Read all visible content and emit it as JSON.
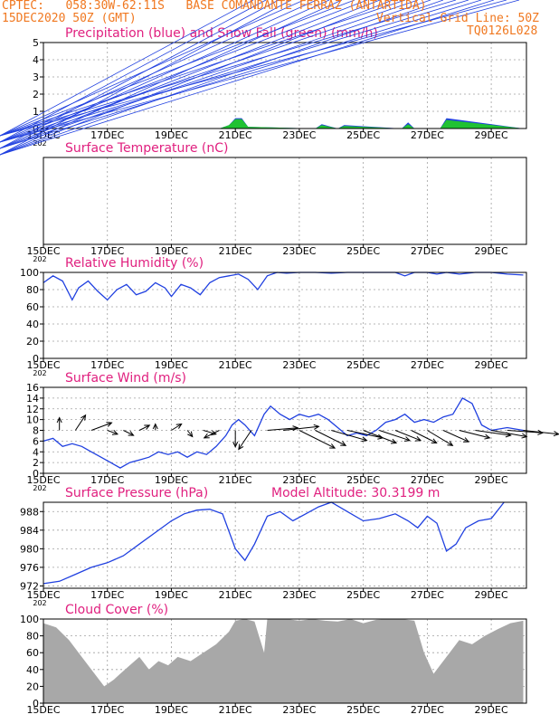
{
  "header": {
    "line1": "CPTEC:   058:30W-62:11S   BASE COMANDANTE FERRAZ (ANTARTIDA)",
    "line2": "15DEC2020 50Z (GMT)",
    "grid_note": "Vertical Grid Line: 50Z",
    "code": "TQ0126L028"
  },
  "colors": {
    "header": "#f07820",
    "title": "#e0207f",
    "series": "#2040e0",
    "snow": "#20d020",
    "cloud": "#a8a8a8",
    "frame": "#000000",
    "grid": "#a0a0a0"
  },
  "x_axis": {
    "labels": [
      "15DEC",
      "17DEC",
      "19DEC",
      "21DEC",
      "23DEC",
      "25DEC",
      "27DEC",
      "29DEC"
    ],
    "day_start": 15,
    "day_end": 30.1,
    "year_fragment": "202"
  },
  "chart_data": [
    {
      "id": "precip",
      "type": "area",
      "title": "Precipitation (blue) and Snow Fall (green) (mm/h)",
      "ylim": [
        0,
        5
      ],
      "yticks": [
        0,
        1,
        2,
        3,
        4,
        5
      ],
      "grid": true,
      "series": [
        {
          "name": "Precipitation",
          "color": "#2040e0",
          "x": [
            15,
            20.5,
            20.8,
            21.0,
            21.2,
            21.4,
            23.5,
            23.7,
            24.2,
            24.4,
            26.2,
            26.4,
            26.6,
            27.4,
            27.6,
            30
          ],
          "y": [
            0,
            0,
            0.2,
            0.6,
            0.6,
            0.1,
            0,
            0.25,
            0,
            0.2,
            0,
            0.35,
            0,
            0,
            0.6,
            0
          ]
        },
        {
          "name": "Snow Fall",
          "color": "#20d020",
          "x": [
            15,
            20.5,
            20.8,
            21.0,
            21.2,
            21.4,
            23.5,
            23.7,
            24.2,
            24.4,
            26.2,
            26.4,
            26.6,
            27.4,
            27.6,
            30
          ],
          "y": [
            0,
            0,
            0.2,
            0.55,
            0.55,
            0.1,
            0,
            0.2,
            0,
            0.15,
            0,
            0.25,
            0,
            0,
            0.5,
            0
          ]
        }
      ]
    },
    {
      "id": "temp",
      "type": "line",
      "title": "Surface Temperature (nC)",
      "ylim": [
        0,
        1
      ],
      "yticks": [],
      "grid": true,
      "series": []
    },
    {
      "id": "rh",
      "type": "line",
      "title": "Relative Humidity (%)",
      "ylim": [
        0,
        100
      ],
      "yticks": [
        0,
        20,
        40,
        60,
        80,
        100
      ],
      "grid": true,
      "series": [
        {
          "name": "Relative Humidity",
          "color": "#2040e0",
          "x": [
            15,
            15.3,
            15.6,
            15.9,
            16.1,
            16.4,
            16.7,
            17.0,
            17.3,
            17.6,
            17.9,
            18.2,
            18.5,
            18.8,
            19.0,
            19.3,
            19.6,
            19.9,
            20.2,
            20.5,
            20.8,
            21.1,
            21.4,
            21.7,
            22.0,
            22.3,
            22.6,
            23.0,
            23.5,
            24.0,
            24.5,
            25.0,
            25.5,
            26.0,
            26.3,
            26.6,
            27.0,
            27.3,
            27.6,
            28.0,
            28.5,
            29.0,
            29.5,
            30.0
          ],
          "y": [
            88,
            96,
            90,
            68,
            82,
            90,
            78,
            68,
            80,
            86,
            74,
            78,
            88,
            82,
            72,
            86,
            82,
            74,
            88,
            94,
            96,
            98,
            92,
            80,
            96,
            100,
            99,
            100,
            100,
            99,
            100,
            100,
            100,
            100,
            96,
            100,
            100,
            98,
            100,
            98,
            100,
            100,
            98,
            97
          ]
        }
      ]
    },
    {
      "id": "wind",
      "type": "line",
      "title": "Surface Wind (m/s)",
      "ylim": [
        0,
        16
      ],
      "yticks": [
        0,
        2,
        4,
        6,
        8,
        10,
        12,
        14,
        16
      ],
      "grid": true,
      "series": [
        {
          "name": "Wind Speed",
          "color": "#2040e0",
          "x": [
            15,
            15.3,
            15.6,
            15.9,
            16.2,
            16.5,
            16.8,
            17.1,
            17.4,
            17.7,
            18.0,
            18.3,
            18.6,
            18.9,
            19.2,
            19.5,
            19.8,
            20.1,
            20.4,
            20.7,
            20.9,
            21.1,
            21.3,
            21.6,
            21.9,
            22.1,
            22.4,
            22.7,
            23.0,
            23.3,
            23.6,
            23.9,
            24.2,
            24.5,
            24.8,
            25.1,
            25.4,
            25.7,
            26.0,
            26.3,
            26.6,
            26.9,
            27.2,
            27.5,
            27.8,
            28.1,
            28.4,
            28.7,
            29.0,
            29.5,
            30.0
          ],
          "y": [
            6,
            6.5,
            5,
            5.5,
            5,
            4,
            3,
            2,
            1,
            2,
            2.5,
            3,
            4,
            3.5,
            4,
            3,
            4,
            3.5,
            5,
            7,
            9,
            10,
            9,
            7,
            11,
            12.5,
            11,
            10,
            11,
            10.5,
            11,
            10,
            8.5,
            7,
            7.5,
            7,
            8,
            9.5,
            10,
            11,
            9.5,
            10,
            9.5,
            10.5,
            11,
            14,
            13,
            9,
            8,
            8.5,
            8
          ]
        }
      ],
      "vectors": {
        "x": [
          15.5,
          16.0,
          16.5,
          17.0,
          17.5,
          18.0,
          18.5,
          19.0,
          19.5,
          20.0,
          20.5,
          21.0,
          21.5,
          22.0,
          22.5,
          23.0,
          23.5,
          24.0,
          24.5,
          25.0,
          25.5,
          26.0,
          26.5,
          27.0,
          27.5,
          28.0,
          28.5,
          29.0,
          29.5,
          30.0
        ],
        "u": [
          0,
          0.4,
          0.8,
          0.4,
          0.4,
          0.4,
          0,
          0.4,
          0.2,
          0.5,
          -0.6,
          0,
          -0.5,
          1.2,
          1.4,
          1.4,
          1.2,
          1.4,
          1.4,
          1.3,
          1.2,
          1.0,
          1.0,
          1.0,
          1.0,
          1.2,
          1.4,
          1.4,
          1.4,
          1.4
        ],
        "v": [
          1,
          1.2,
          0.6,
          -0.3,
          -0.4,
          0.4,
          0.5,
          0.5,
          -0.5,
          -0.3,
          -0.6,
          -1.3,
          -1.5,
          0.2,
          0.3,
          -1.4,
          -1.2,
          -0.8,
          -0.6,
          -1.0,
          -0.8,
          -0.8,
          -1.0,
          -1.2,
          -0.9,
          -0.6,
          -0.4,
          -0.5,
          -0.2,
          -0.3
        ]
      }
    },
    {
      "id": "pressure",
      "type": "line",
      "title": "Surface Pressure (hPa)",
      "annotation": "Model Altitude: 30.3199 m",
      "ylim": [
        971.5,
        990
      ],
      "yticks": [
        972,
        976,
        980,
        984,
        988
      ],
      "grid": true,
      "series": [
        {
          "name": "Surface Pressure",
          "color": "#2040e0",
          "x": [
            15,
            15.5,
            16.0,
            16.5,
            17.0,
            17.5,
            18.0,
            18.5,
            19.0,
            19.4,
            19.8,
            20.2,
            20.6,
            21.0,
            21.3,
            21.6,
            22.0,
            22.4,
            22.8,
            23.2,
            23.6,
            24.0,
            24.5,
            25.0,
            25.5,
            26.0,
            26.4,
            26.7,
            27.0,
            27.3,
            27.6,
            27.9,
            28.2,
            28.6,
            29.0,
            29.4
          ],
          "y": [
            972.5,
            973,
            974.5,
            976,
            977,
            978.5,
            981,
            983.5,
            986,
            987.5,
            988.3,
            988.5,
            987.5,
            980,
            977.5,
            981,
            987,
            988,
            986,
            987.5,
            989,
            990,
            988,
            986,
            986.5,
            987.5,
            986,
            984.5,
            987,
            985.5,
            979.5,
            981,
            984.5,
            986,
            986.5,
            990
          ]
        }
      ]
    },
    {
      "id": "cloud",
      "type": "area",
      "title": "Cloud Cover (%)",
      "ylim": [
        0,
        100
      ],
      "yticks": [
        0,
        20,
        40,
        60,
        80,
        100
      ],
      "grid": true,
      "series": [
        {
          "name": "Cloud Cover",
          "color": "#a8a8a8",
          "x": [
            15,
            15.4,
            15.8,
            16.2,
            16.6,
            16.9,
            17.2,
            17.4,
            17.7,
            18.0,
            18.3,
            18.6,
            18.9,
            19.2,
            19.6,
            20.0,
            20.4,
            20.8,
            21.0,
            21.3,
            21.6,
            21.9,
            22.0,
            22.3,
            22.6,
            23.0,
            23.4,
            23.8,
            24.2,
            24.6,
            25.0,
            25.4,
            25.8,
            26.2,
            26.6,
            26.9,
            27.2,
            27.4,
            27.7,
            28.0,
            28.4,
            28.8,
            29.2,
            29.6,
            30.0
          ],
          "y": [
            95,
            90,
            75,
            55,
            35,
            20,
            28,
            35,
            45,
            55,
            40,
            50,
            45,
            55,
            50,
            60,
            70,
            85,
            98,
            100,
            97,
            60,
            100,
            100,
            100,
            98,
            100,
            98,
            97,
            100,
            95,
            99,
            100,
            100,
            98,
            60,
            35,
            45,
            60,
            75,
            70,
            80,
            88,
            95,
            98
          ]
        }
      ]
    }
  ]
}
